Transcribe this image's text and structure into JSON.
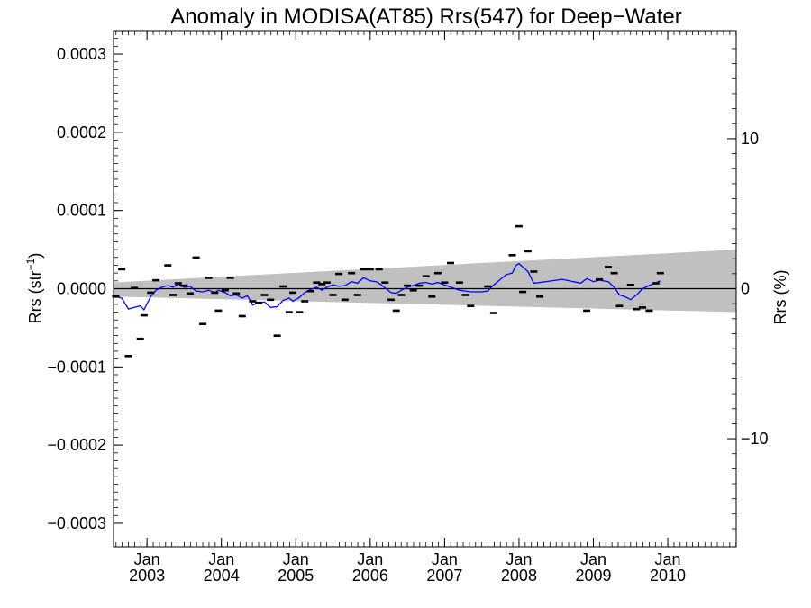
{
  "chart_data": {
    "type": "line",
    "title": "Anomaly in MODISA(AT85) Rrs(547) for Deep−Water",
    "ylabel_left": "Rrs (str",
    "ylabel_left_sup": "−1",
    "ylabel_left_close": ")",
    "ylabel_right": "Rrs (%)",
    "xlim": [
      2002.55,
      2010.92
    ],
    "ylim": [
      -0.00033,
      0.00033
    ],
    "y2lim": [
      -17.2,
      17.2
    ],
    "x_ticks": [
      {
        "x": 2003.0,
        "top": "Jan",
        "bottom": "2003"
      },
      {
        "x": 2004.0,
        "top": "Jan",
        "bottom": "2004"
      },
      {
        "x": 2005.0,
        "top": "Jan",
        "bottom": "2005"
      },
      {
        "x": 2006.0,
        "top": "Jan",
        "bottom": "2006"
      },
      {
        "x": 2007.0,
        "top": "Jan",
        "bottom": "2007"
      },
      {
        "x": 2008.0,
        "top": "Jan",
        "bottom": "2008"
      },
      {
        "x": 2009.0,
        "top": "Jan",
        "bottom": "2009"
      },
      {
        "x": 2010.0,
        "top": "Jan",
        "bottom": "2010"
      }
    ],
    "y_ticks": [
      {
        "y": 0.0003,
        "label": "0.0003"
      },
      {
        "y": 0.0002,
        "label": "0.0002"
      },
      {
        "y": 0.0001,
        "label": "0.0001"
      },
      {
        "y": 0.0,
        "label": "0.0000"
      },
      {
        "y": -0.0001,
        "label": "−0.0001"
      },
      {
        "y": -0.0002,
        "label": "−0.0002"
      },
      {
        "y": -0.0003,
        "label": "−0.0003"
      }
    ],
    "y2_ticks": [
      {
        "y": 10,
        "label": "10"
      },
      {
        "y": 0,
        "label": "0"
      },
      {
        "y": -10,
        "label": "−10"
      }
    ],
    "band": {
      "x": [
        2002.55,
        2010.92
      ],
      "upper": [
        8e-06,
        5e-05
      ],
      "lower": [
        -1e-05,
        -3e-05
      ]
    },
    "zero_line": 0,
    "points": [
      [
        2002.58,
        -1e-05
      ],
      [
        2002.66,
        2.5e-05
      ],
      [
        2002.75,
        -8.6e-05
      ],
      [
        2002.83,
        1e-06
      ],
      [
        2002.91,
        -6.4e-05
      ],
      [
        2002.96,
        -3.4e-05
      ],
      [
        2003.05,
        -5e-06
      ],
      [
        2003.12,
        1.1e-05
      ],
      [
        2003.28,
        3e-05
      ],
      [
        2003.35,
        -8e-06
      ],
      [
        2003.42,
        7e-06
      ],
      [
        2003.5,
        4e-06
      ],
      [
        2003.58,
        -6e-06
      ],
      [
        2003.66,
        4e-05
      ],
      [
        2003.75,
        -4.5e-05
      ],
      [
        2003.83,
        1.4e-05
      ],
      [
        2003.91,
        -5e-06
      ],
      [
        2003.96,
        -2.8e-05
      ],
      [
        2004.05,
        -2e-06
      ],
      [
        2004.12,
        1.4e-05
      ],
      [
        2004.2,
        -6e-06
      ],
      [
        2004.28,
        -3.5e-05
      ],
      [
        2004.42,
        -1.6e-05
      ],
      [
        2004.5,
        -1.8e-05
      ],
      [
        2004.58,
        -8e-06
      ],
      [
        2004.66,
        -1.4e-05
      ],
      [
        2004.75,
        -6e-05
      ],
      [
        2004.83,
        3e-06
      ],
      [
        2004.91,
        -3e-05
      ],
      [
        2004.96,
        -5e-06
      ],
      [
        2005.05,
        -3e-05
      ],
      [
        2005.12,
        -1.6e-05
      ],
      [
        2005.2,
        -3e-06
      ],
      [
        2005.28,
        8e-06
      ],
      [
        2005.35,
        6e-06
      ],
      [
        2005.42,
        8e-06
      ],
      [
        2005.5,
        -8e-06
      ],
      [
        2005.58,
        1.9e-05
      ],
      [
        2005.66,
        -1.4e-05
      ],
      [
        2005.75,
        2e-05
      ],
      [
        2005.83,
        -8e-06
      ],
      [
        2005.91,
        2.5e-05
      ],
      [
        2006.0,
        2.5e-05
      ],
      [
        2006.12,
        2.5e-05
      ],
      [
        2006.2,
        8e-06
      ],
      [
        2006.28,
        -1.4e-05
      ],
      [
        2006.35,
        -2.8e-05
      ],
      [
        2006.42,
        -8e-06
      ],
      [
        2006.5,
        4e-06
      ],
      [
        2006.58,
        -2e-06
      ],
      [
        2006.66,
        4e-06
      ],
      [
        2006.75,
        1.6e-05
      ],
      [
        2006.83,
        -1e-05
      ],
      [
        2006.91,
        2e-05
      ],
      [
        2007.0,
        8e-06
      ],
      [
        2007.08,
        3.3e-05
      ],
      [
        2007.2,
        8e-06
      ],
      [
        2007.28,
        -8e-06
      ],
      [
        2007.35,
        -2.2e-05
      ],
      [
        2007.58,
        3e-06
      ],
      [
        2007.66,
        -3.1e-05
      ],
      [
        2007.91,
        4.3e-05
      ],
      [
        2008.0,
        8e-05
      ],
      [
        2008.05,
        -4e-06
      ],
      [
        2008.12,
        4.8e-05
      ],
      [
        2008.2,
        2.2e-05
      ],
      [
        2008.28,
        -1e-05
      ],
      [
        2008.91,
        -2.8e-05
      ],
      [
        2009.08,
        1.2e-05
      ],
      [
        2009.2,
        2.8e-05
      ],
      [
        2009.28,
        2e-05
      ],
      [
        2009.35,
        -2.2e-05
      ],
      [
        2009.5,
        5e-06
      ],
      [
        2009.58,
        -2.6e-05
      ],
      [
        2009.66,
        -2.4e-05
      ],
      [
        2009.75,
        -2.8e-05
      ],
      [
        2009.84,
        7e-06
      ],
      [
        2009.9,
        2e-05
      ]
    ],
    "trend": [
      [
        2002.58,
        -1e-05
      ],
      [
        2002.66,
        -1.2e-05
      ],
      [
        2002.75,
        -2.6e-05
      ],
      [
        2002.83,
        -2.4e-05
      ],
      [
        2002.91,
        -2.2e-05
      ],
      [
        2002.96,
        -2.7e-05
      ],
      [
        2003.05,
        -1e-05
      ],
      [
        2003.12,
        -2e-06
      ],
      [
        2003.2,
        2e-06
      ],
      [
        2003.28,
        4e-06
      ],
      [
        2003.35,
        2e-06
      ],
      [
        2003.42,
        6e-06
      ],
      [
        2003.5,
        2e-06
      ],
      [
        2003.58,
        3e-06
      ],
      [
        2003.66,
        -3e-06
      ],
      [
        2003.75,
        -4e-06
      ],
      [
        2003.83,
        -2e-06
      ],
      [
        2003.91,
        -5e-06
      ],
      [
        2003.96,
        -2e-06
      ],
      [
        2004.05,
        -5e-06
      ],
      [
        2004.12,
        -9e-06
      ],
      [
        2004.2,
        -8e-06
      ],
      [
        2004.28,
        -1.2e-05
      ],
      [
        2004.35,
        -9e-06
      ],
      [
        2004.42,
        -2.1e-05
      ],
      [
        2004.5,
        -1.8e-05
      ],
      [
        2004.58,
        -1.7e-05
      ],
      [
        2004.66,
        -2.4e-05
      ],
      [
        2004.75,
        -2.3e-05
      ],
      [
        2004.83,
        -1.5e-05
      ],
      [
        2004.91,
        -1.2e-05
      ],
      [
        2004.96,
        -1.6e-05
      ],
      [
        2005.05,
        -1.1e-05
      ],
      [
        2005.12,
        -5e-06
      ],
      [
        2005.2,
        -1e-06
      ],
      [
        2005.28,
        2e-06
      ],
      [
        2005.35,
        -2e-06
      ],
      [
        2005.42,
        2e-06
      ],
      [
        2005.5,
        5e-06
      ],
      [
        2005.58,
        3e-06
      ],
      [
        2005.66,
        4e-06
      ],
      [
        2005.75,
        9e-06
      ],
      [
        2005.83,
        7e-06
      ],
      [
        2005.91,
        1.4e-05
      ],
      [
        2006.0,
        1e-05
      ],
      [
        2006.08,
        9e-06
      ],
      [
        2006.12,
        7e-06
      ],
      [
        2006.2,
        1e-06
      ],
      [
        2006.28,
        -5e-06
      ],
      [
        2006.35,
        -6e-06
      ],
      [
        2006.42,
        -2e-06
      ],
      [
        2006.5,
        2e-06
      ],
      [
        2006.58,
        4e-06
      ],
      [
        2006.66,
        7e-06
      ],
      [
        2006.75,
        8e-06
      ],
      [
        2006.83,
        6e-06
      ],
      [
        2006.91,
        8e-06
      ],
      [
        2007.0,
        5e-06
      ],
      [
        2007.08,
        2e-06
      ],
      [
        2007.2,
        -2e-06
      ],
      [
        2007.28,
        -3e-06
      ],
      [
        2007.35,
        -4e-06
      ],
      [
        2007.5,
        -4e-06
      ],
      [
        2007.58,
        -3e-06
      ],
      [
        2007.66,
        5e-06
      ],
      [
        2007.75,
        1.2e-05
      ],
      [
        2007.83,
        1.8e-05
      ],
      [
        2007.91,
        2e-05
      ],
      [
        2007.96,
        3e-05
      ],
      [
        2008.0,
        3.2e-05
      ],
      [
        2008.05,
        2.8e-05
      ],
      [
        2008.12,
        2.2e-05
      ],
      [
        2008.2,
        7e-06
      ],
      [
        2008.28,
        8e-06
      ],
      [
        2008.58,
        1.2e-05
      ],
      [
        2008.83,
        7e-06
      ],
      [
        2008.91,
        1.3e-05
      ],
      [
        2009.0,
        9e-06
      ],
      [
        2009.08,
        1.1e-05
      ],
      [
        2009.2,
        9e-06
      ],
      [
        2009.28,
        2e-06
      ],
      [
        2009.35,
        -8e-06
      ],
      [
        2009.42,
        -1e-05
      ],
      [
        2009.5,
        -1.4e-05
      ],
      [
        2009.58,
        -8e-06
      ],
      [
        2009.66,
        0.0
      ],
      [
        2009.75,
        4e-06
      ],
      [
        2009.9,
        1e-05
      ]
    ],
    "colors": {
      "band": "#c0c0c0",
      "trend": "#0000ff",
      "points": "#000000",
      "axes": "#000000"
    }
  }
}
